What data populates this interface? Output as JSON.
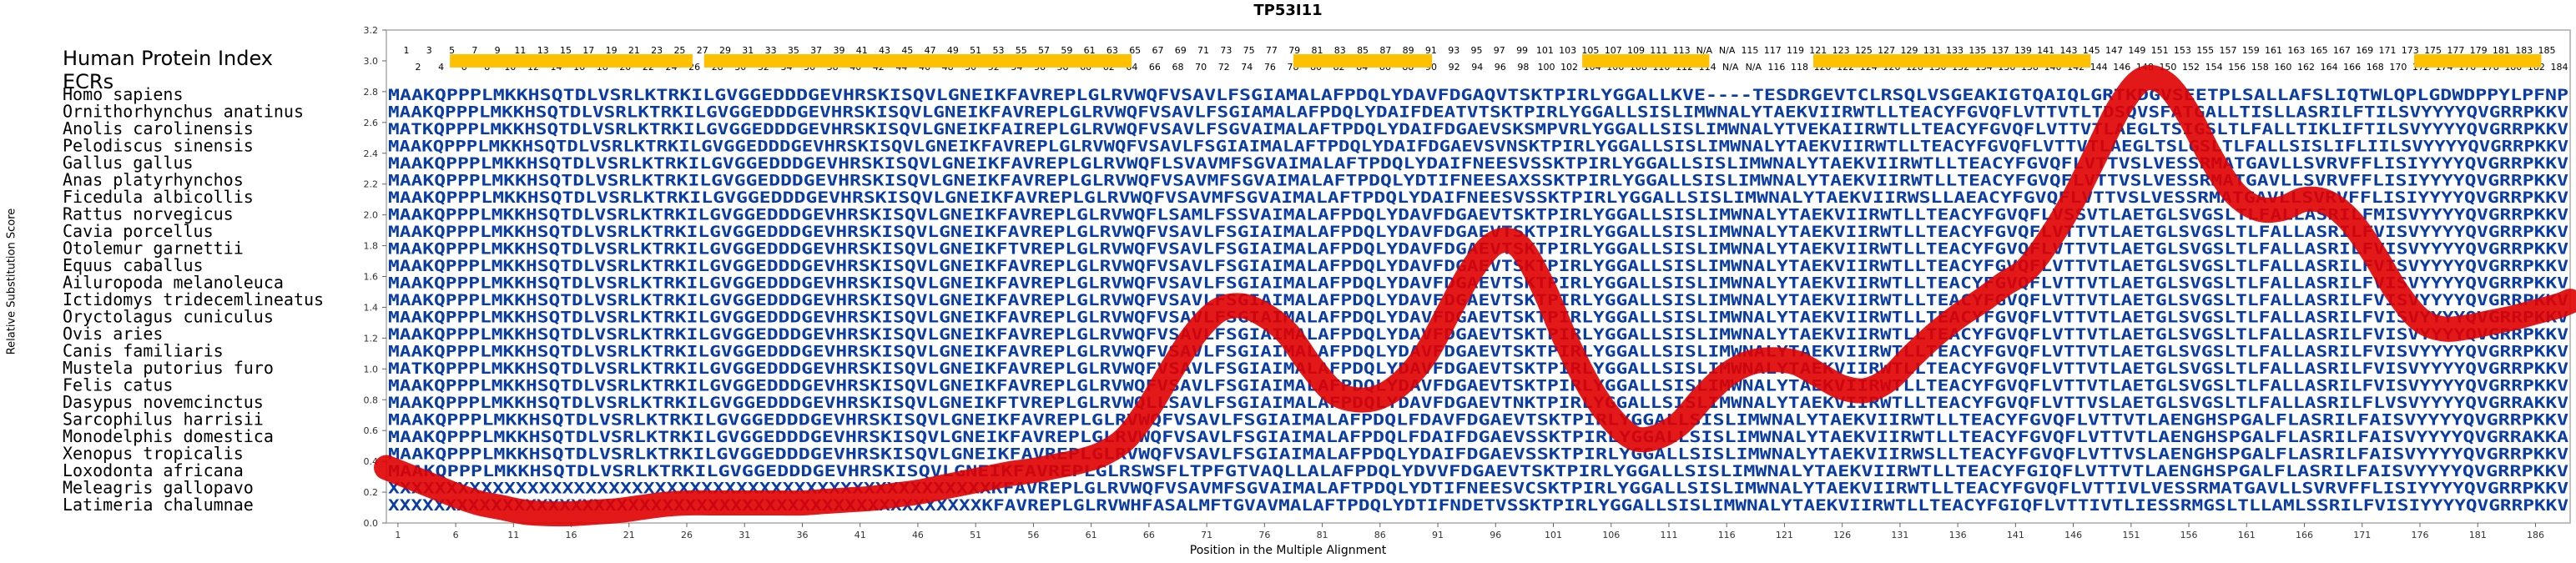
{
  "chart_data": {
    "type": "line",
    "title": "TP53I11",
    "xlabel": "Position in the Multiple Alignment",
    "ylabel": "Relative Substitution Score",
    "xlim": [
      0,
      189
    ],
    "ylim": [
      0.0,
      3.2
    ],
    "y_ticks": [
      "0.0",
      "0.2",
      "0.4",
      "0.6",
      "0.8",
      "1.0",
      "1.2",
      "1.4",
      "1.6",
      "1.8",
      "2.0",
      "2.2",
      "2.4",
      "2.6",
      "2.8",
      "3.0",
      "3.2"
    ],
    "x_ticks": [
      "1",
      "6",
      "11",
      "16",
      "21",
      "26",
      "31",
      "36",
      "41",
      "46",
      "51",
      "56",
      "61",
      "66",
      "71",
      "76",
      "81",
      "86",
      "91",
      "96",
      "101",
      "106",
      "111",
      "116",
      "121",
      "126",
      "131",
      "136",
      "141",
      "146",
      "151",
      "156",
      "161",
      "166",
      "171",
      "176",
      "181",
      "186"
    ],
    "grid": false,
    "header_label_index": "Human Protein Index",
    "header_label_ecrs": "ECRs",
    "index_row_odd": [
      "1",
      "3",
      "5",
      "7",
      "9",
      "11",
      "13",
      "15",
      "17",
      "19",
      "21",
      "23",
      "25",
      "27",
      "29",
      "31",
      "33",
      "35",
      "37",
      "39",
      "41",
      "43",
      "45",
      "47",
      "49",
      "51",
      "53",
      "55",
      "57",
      "59",
      "61",
      "63",
      "65",
      "67",
      "69",
      "71",
      "73",
      "75",
      "77",
      "79",
      "81",
      "83",
      "85",
      "87",
      "89",
      "91",
      "93",
      "95",
      "97",
      "99",
      "101",
      "103",
      "105",
      "107",
      "109",
      "111",
      "113",
      "N/A",
      "N/A",
      "115",
      "117",
      "119",
      "121",
      "123",
      "125",
      "127",
      "129",
      "131",
      "133",
      "135",
      "137",
      "139",
      "141",
      "143",
      "145",
      "147",
      "149",
      "151",
      "153",
      "155",
      "157",
      "159",
      "161",
      "163",
      "165",
      "167",
      "169",
      "171",
      "173",
      "175",
      "177",
      "179",
      "181",
      "183",
      "185"
    ],
    "index_row_even": [
      "2",
      "4",
      "6",
      "8",
      "10",
      "12",
      "14",
      "16",
      "18",
      "20",
      "22",
      "24",
      "26",
      "28",
      "30",
      "32",
      "34",
      "36",
      "38",
      "40",
      "42",
      "44",
      "46",
      "48",
      "50",
      "52",
      "54",
      "56",
      "58",
      "60",
      "62",
      "64",
      "66",
      "68",
      "70",
      "72",
      "74",
      "76",
      "78",
      "80",
      "82",
      "84",
      "86",
      "88",
      "90",
      "92",
      "94",
      "96",
      "98",
      "100",
      "102",
      "104",
      "106",
      "108",
      "110",
      "112",
      "114",
      "N/A",
      "N/A",
      "116",
      "118",
      "120",
      "122",
      "124",
      "126",
      "128",
      "130",
      "132",
      "134",
      "136",
      "138",
      "140",
      "142",
      "144",
      "146",
      "148",
      "150",
      "152",
      "154",
      "156",
      "158",
      "160",
      "162",
      "164",
      "166",
      "168",
      "170",
      "172",
      "174",
      "176",
      "178",
      "180",
      "182",
      "184"
    ],
    "ecr_regions": [
      [
        6,
        26
      ],
      [
        28,
        64
      ],
      [
        79,
        90
      ],
      [
        104,
        114
      ],
      [
        124,
        147
      ],
      [
        176,
        186
      ]
    ],
    "ecr_color": "#ffc000",
    "series": [
      {
        "color": "#e00000",
        "x": [
          0,
          2,
          4,
          6,
          8,
          10,
          12,
          14,
          16,
          18,
          20,
          22,
          24,
          26,
          28,
          30,
          32,
          34,
          36,
          38,
          40,
          42,
          44,
          46,
          48,
          50,
          52,
          54,
          56,
          58,
          60,
          62,
          64,
          66,
          68,
          70,
          72,
          74,
          76,
          78,
          80,
          82,
          84,
          86,
          88,
          90,
          92,
          94,
          96,
          98,
          100,
          102,
          104,
          106,
          108,
          110,
          112,
          114,
          116,
          118,
          120,
          122,
          124,
          126,
          128,
          130,
          132,
          134,
          136,
          138,
          140,
          142,
          144,
          146,
          148,
          150,
          152,
          154,
          156,
          158,
          160,
          162,
          164,
          166,
          168,
          170,
          172,
          174,
          176,
          178,
          180,
          182,
          184,
          186,
          188,
          189
        ],
        "y": [
          0.36,
          0.3,
          0.24,
          0.18,
          0.13,
          0.1,
          0.07,
          0.06,
          0.06,
          0.07,
          0.08,
          0.1,
          0.12,
          0.13,
          0.13,
          0.13,
          0.13,
          0.13,
          0.13,
          0.14,
          0.15,
          0.16,
          0.18,
          0.2,
          0.23,
          0.26,
          0.29,
          0.32,
          0.34,
          0.37,
          0.4,
          0.45,
          0.55,
          0.75,
          1.0,
          1.23,
          1.38,
          1.41,
          1.35,
          1.23,
          1.02,
          0.85,
          0.8,
          0.82,
          0.92,
          1.1,
          1.38,
          1.65,
          1.82,
          1.8,
          1.55,
          1.2,
          0.9,
          0.68,
          0.55,
          0.56,
          0.65,
          0.82,
          0.96,
          1.04,
          1.06,
          1.04,
          0.96,
          0.88,
          0.86,
          0.93,
          1.08,
          1.22,
          1.34,
          1.44,
          1.55,
          1.65,
          1.85,
          2.1,
          2.4,
          2.7,
          2.88,
          2.85,
          2.65,
          2.36,
          2.14,
          2.04,
          2.04,
          2.1,
          2.08,
          1.96,
          1.75,
          1.5,
          1.32,
          1.26,
          1.27,
          1.3,
          1.33,
          1.37,
          1.41,
          1.44
        ]
      }
    ],
    "alignment": {
      "species": [
        "Homo sapiens",
        "Ornithorhynchus anatinus",
        "Anolis carolinensis",
        "Pelodiscus sinensis",
        "Gallus gallus",
        "Anas platyrhynchos",
        "Ficedula albicollis",
        "Rattus norvegicus",
        "Cavia porcellus",
        "Otolemur garnettii",
        "Equus caballus",
        "Ailuropoda melanoleuca",
        "Ictidomys tridecemlineatus",
        "Oryctolagus cuniculus",
        "Ovis aries",
        "Canis familiaris",
        "Mustela putorius furo",
        "Felis catus",
        "Dasypus novemcinctus",
        "Sarcophilus harrisii",
        "Monodelphis domestica",
        "Xenopus tropicalis",
        "Loxodonta africana",
        "Meleagris gallopavo",
        "Latimeria chalumnae"
      ],
      "sequences": [
        "MAAKQPPPLMKKHSQTDLVSRLKTRKILGVGGEDDDGEVHRSKISQVLGNEIKFAVREPLGLRVWQFVSAVLFSGIAMALAFPDQLYDAVFDGAQVTSKTPIRLYGGALLKVE----TESDRGEVTCLRSQLVSGEAKIGTQAIQLGRTKDGVSEETPLSALLAFSLIQTWLQPLGDWDPPYLPFNP",
        "MAAKQPPPLMKKHSQTDLVSRLKTRKILGVGGEDDDGEVHRSKISQVLGNEIKFAVREPLGLRVWQFVSAVLFSGIAMALAFPDQLYDAIFDEATVTSKTPIRLYGGALLSISLIMWNALYTAEKVIIRWTLLTEACYFGVQFLVTTVTLTDSQVSFATGALLTISLLASRILFTILSVYYYYQVGRRPKKV",
        "MATKQPPPLMKKHSQTDLVSRLKTRKILGVGGEDDDGEVHRSKISQVLGNEIKFAIREPLGLRVWQFVSAVLFSGVAIMALAFTPDQLYDAIFDGAEVSKSMPVRLYGGALLSISLIMWNALYTVEKAIIRWTLLTEACYFGVQFLVTTVTLAEGLTSIGSLTLFALLTIKLIFTILSVYYYYQVGRRPKKV",
        "MAAKQPPPLMKKHSQTDLVSRLKTRKILGVGGEDDDGEVHRSKISQVLGNEIKFAVREPLGLRVWQFVSAVLFSGIAIMALAFTPDQLYDAIFDGAEVSVNSKTPIRLYGGALLSISLIMWNALYTAEKVIIRWTLLTEACYFGVQFLVTTVTLAEGLTSLGSLTLFALLSISLIFLIILSVYYYYQVGRRPKKV",
        "MAAKQPPPLMKKHSQTDLVSRLKTRKILGVGGEDDDGEVHRSKISQVLGNEIKFAVREPLGLRVWQFLSVAVMFSGVAIMALAFTPDQLYDAIFNEESVSSKTPIRLYGGALLSISLIMWNALYTAEKVIIRWTLLTEACYFGVQFLVTTVSLVESSRMATGAVLLSVRVFFLISIYYYYQVGRRPKKV",
        "MAAKQPPPLMKKHSQTDLVSRLKTRKILGVGGEDDDGEVHRSKISQVLGNEIKFAVREPLGLRVWQFVSAVMFSGVAIMALAFTPDQLYDTIFNEESAXSSKTPIRLYGGALLSISLIMWNALYTAEKVIIRWTLLTEACYFGVQFLVTTVSLVESSRMATGAVLLSVRVFFLISIYYYYQVGRRPKKV",
        "MAAKQPPPLMKKHSQTDLVSRLKTRKILGVGGEDDDGEVHRSKISQVLGNEIKFAVREPLGLRVWQFVSAVMFSGVAIMALAFTPDQLYDAIFNEESVSSKTPIRLYGGALLSISLIMWNALYTAEKVIIRWSLLAEACYFGVQFLVTTVSLVESSRMATGAVLLSVRVFFLISIYYYYQVGRRPKKV",
        "MAAKQPPPLMKKHSQTDLVSRLKTRKILGVGGEDDDGEVHRSKISQVLGNEIKFAVREPLGLRVWQFLSAMLFSSVAIMALAFPDQLYDAVFDGAEVTSKTPIRLYGGALLSISLIMWNALYTAEKVIIRWTLLTEACYFGVQFLVSSVTLAETGLSVGSLTLFALLASRILFMISVYYYYQVGRRPKKV",
        "MAAKQPPPLMKKHSQTDLVSRLKTRKILGVGGEDDDGEVHRSKISQVLGNEIKFAVREPLGLRVWQFVSAVLFSGIAIMALAFPDQLYDAVFDGAEVTSKTPIRLYGGALLSISLIMWNALYTAEKVIIRWTLLTEACYFGVQFLVTTVTLAETGLSVGSLTLFALLASRILFVISVYYYYQVGRRPKKV",
        "MAAKQPPPLMKKHSQTDLVSRLKTRKILGVGGEDDDGEVHRSKISQVLGNEIKFTVREPLGLRVWQFVSAVLFSGIAIMALAFPDQLYDAVFDGAEVTSKTPIRLYGGALLSISLIMWNALYTAEKVIIRWTLLTEACYFGVQFLVTTVTLAETGLSVGSLTLFALLASRILFVISVYYYYQVGRRPKKV",
        "MAAKQPPPLMKKHSQTDLVSRLKTRKILGVGGEDDDGEVHRSKISQVLGNEIKFAVREPLGLRVWQFVSAVLFSGIAIMALAFPDQLYDAVFDGAEVTSKTPIRLYGGALLSISLIMWNALYTAEKVIIRWTLLTEACYFGVQFLVTTVTLAETGLSVGSLTLFALLASRILFVISVYYYYQVGRRPKKV",
        "MAAKQPPPLMKKHSQTDLVSRLKTRKILGVGGEDDDGEVHRSKISQVLGNEIKFAVREPLGLRVWQFVSAVLFSGIAIMALAFPDQLYDAVFDGAEVTSKTPIRLYGGALLSISLIMWNALYTAEKVIIRWTLLTEACYFGVQFLVTTVTLAETGLSVGSLTLFALLASRILFVISVYYYYQVGRRPKKV",
        "MAAKQPPPLMKKHSQTDLVSRLKTRKILGVGGEDDDGEVHRSKISQVLGNEIKFAVREPLGLRVWQFVSAVLFSGIAIMALAFPDQLYDAVFDGAEVTSKTPIRLYGGALLSISLIMWNALYTAEKVIIRWTLLTEACYFGVQFLVTTVTLAETGLSVGSLTLFALLASRILFVISVYYYYQVGRRPKKV",
        "MAAKQPPPLMKKHSQTDLVSRLKTRKILGVGGEDDDGEVHRSKISQVLGNEIKFAVREPLGLRVWQFVSAVLFSGIAIMALAFPDQLYDAVFDGAEVTSKTPIRLYGGALLSISLIMWNALYTAEKVIIRWTLLTEACYFGVQFLVTTVTLAETGLSVGSLTLFALLASRILFVISVYYYYQVGRRPKKV",
        "MAAKQPPPLMKKHSQTDLVSRLKTRKILGVGGEDDDGEVHRSKISQVLGNEIKFAVREPLGLRVWQFVSAVLFSGIAIMALAFPDQLYDAVFDGAEVTSKTPIRLYGGALLSISLIMWNALYTAEKVIIRWTLLTEACYFGVQFLVTTVTLAETGLSVGSLTLFALLASRILFVISVYYYYQVGRRPKKV",
        "MAAKQPPPLMKKHSQTDLVSRLKTRKILGVGGEDDDGEVHRSKISQVLGNEIKFAVREPLGLRVWQFVSAVLFSGIAIMALAFPDQLYDAVFDGAEVTSKTPIRLYGGALLSISLIMWNALYTAEKVIIRWTLLTEACYFGVQFLVTTVTLAETGLSVGSLTLFALLASRILFVISVYYYYQVGRRPKKV",
        "MATKQPPPLMKKHSQTDLVSRLKTRKILGVGGEDDDGEVHRSKISQVLGNEIKFAVREPLGLRVWQFVSAVLFSGIAIMALAFPDQLYDAVFDGAEVTSKTPIRLYGGALLSISLIMWNALYTAEKVIIRWTLLTEACYFGVQFLVTTVTLAETGLSVGSLTLFALLASRILFVISVYYYYQVGRRPKKV",
        "MAAKQPPPLMKKHSQTDLVSRLKTRKILGVGGEDDDGEVHRSKISQVLGNEIKFAVREPLGLRVWQFVSAVLFSGIAIMALAFPDQLYDAVFDGAEVTSKTPIRLYGGALLSISLIMWNALYTAEKVIIRWTLLTEACYFGVQFLVTTVTLAETGLSVGSLTLFALLASRILFVISVYYYYQVGRRPKKV",
        "MAAKQPPPLMKKHSQTDLVSRLKTRKILGVGGEDDDGEVHRSKISQVLGNEIKFTVREPLGLRVWQLLSAVLFSGIAIMALAFPDQLYDAVFDGAEVTNKTPIRLYGGALLSISLIMWNALYTAEKVIIRWTLLTEACYFGVQFLVTTVSLAETGLSVGSLTLFALLASRILFLVSVYYYYQVGRRAKKV",
        "MAAKQPPPLMKKHSQTDLVSRLKTRKILGVGGEDDDGEVHRSKISQVLGNEIKFAVREPLGLRVWQFVSAVLFSGIAIMALAFPDQLFDAVFDGAEVTSKTPIRLYGGALLSISLIMWNALYTAEKVIIRWTLLTEACYFGVQFLVTTVTLAENGHSPGALFLASRILFAISVYYYYQVGRRPKKV",
        "MAAKQPPPLMKKHSQTDLVSRLKTRKILGVGGEDDDGEVHRSKISQVLGNEIKFAVREPLGLRVWQFVSAVLFSGIAIMALAFPDQLFDAIFDGAEVSSKTPIRLYGGALLSISLIMWNALYTAEKVIIRWTLLTEACYFGVQFLVTTVTLAENGHSPGALFLASRILFAISVYYYYQVGRRAKKA",
        "MAAKQPPPLMKKHSQTDLVSRLKTRKILGVGGEDDDGEVHRSKISQVLGNEIKFAVREPLGLRVWQFVSAVLFSGIAIMALAFPDQLYDAIFDGAEVSSKTPIRLYGGALLSISLIMWNALYTAEKVIIRWSLLTEACYFGVQFLVTTVSLAENGHSPGALFLASRILFAISVYYYYQVGRRPKKV",
        "MAAKQPPPLMKKHSQTDLVSRLKTRKILGVGGEDDDGEVHRSKISQVLGNEIKFAVREPLGLRSWSFLTPFGTVAQLLALAFPDQLYDVVFDGAEVTSKTPIRLYGGALLSISLIMWNALYTAEKVIIRWTLLTEACYFGIQFLVTTVTLAENGHSPGALFLASRILFAISVYYYYQVGRRPKKV",
        "XXXXXXXXXXXXXXXXXXXXXXXXXXXXXXXXXXXXXXXXXXXXXXXXXXXXKFAVREPLGLRVWQFVSAVMFSGVAIMALAFTPDQLYDTIFNEESVCSKTPIRLYGGALLSISLIMWNALYTAEKVIIRWTLLTEACYFGVQFLVTTIVLVESSRMATGAVLLSVRVFFLISIYYYYQVGRRPKKV",
        "XXXXXXXXXXXXXXXXXXXXXXXXXXXXXXXXXXXXXXXXXXXXXXXXXXXXKFAVREPLGLRVWHFASALMFTGVAVMALAFTPDQLYDTIFNDETVSSKTPIRLYGGALLSISLIMWNALYTAEKVIIRWTLLTEACYFGIQFLVTTIVTLIESSRMGSLTLLAMLSSRILFVISIYYYYQVGRRPKKV"
      ]
    }
  }
}
